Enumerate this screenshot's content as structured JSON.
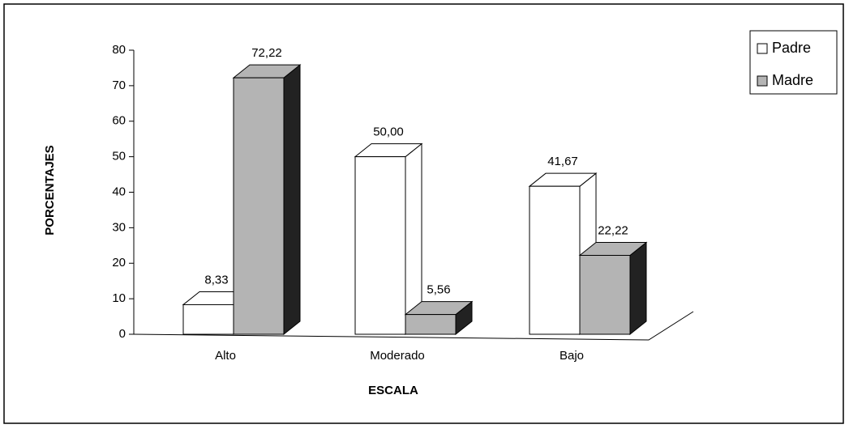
{
  "chart_data": {
    "type": "bar3d",
    "categories": [
      "Alto",
      "Moderado",
      "Bajo"
    ],
    "series": [
      {
        "name": "Padre",
        "color": "#ffffff",
        "values": [
          8.33,
          50.0,
          41.67
        ],
        "value_labels": [
          "8,33",
          "50,00",
          "41,67"
        ]
      },
      {
        "name": "Madre",
        "color": "#b4b4b4",
        "values": [
          72.22,
          5.56,
          22.22
        ],
        "value_labels": [
          "72,22",
          "5,56",
          "22,22"
        ]
      }
    ],
    "ylim": [
      0,
      80
    ],
    "yticks": [
      0,
      10,
      20,
      30,
      40,
      50,
      60,
      70,
      80
    ],
    "xlabel": "ESCALA",
    "ylabel": "PORCENTAJES",
    "legend": "top-right"
  }
}
